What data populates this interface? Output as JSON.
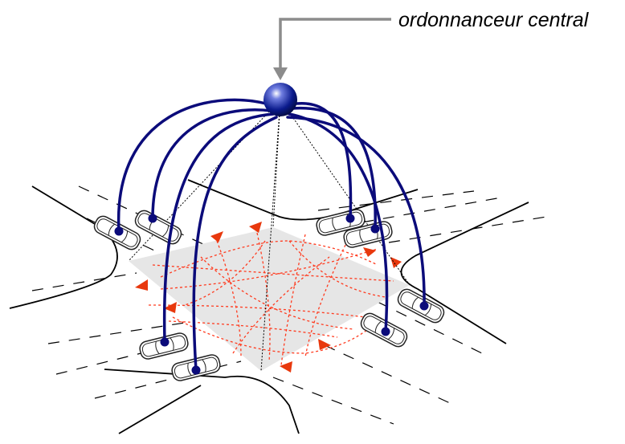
{
  "diagram": {
    "label": "ordonnanceur central",
    "colors": {
      "background": "#ffffff",
      "road_edge": "#000000",
      "lane_dash": "#000000",
      "intersection_fill": "#e6e6e6",
      "trajectory": "#ff3b1f",
      "arrow": "#e8380d",
      "link": "#0b0b7a",
      "scheduler": "#0a1a8c",
      "pointer": "#8c8c8c",
      "car_outline": "#222222"
    },
    "icons": {
      "scheduler": "sphere-node",
      "vehicle": "car-top-view",
      "pointer": "elbow-arrow"
    }
  }
}
